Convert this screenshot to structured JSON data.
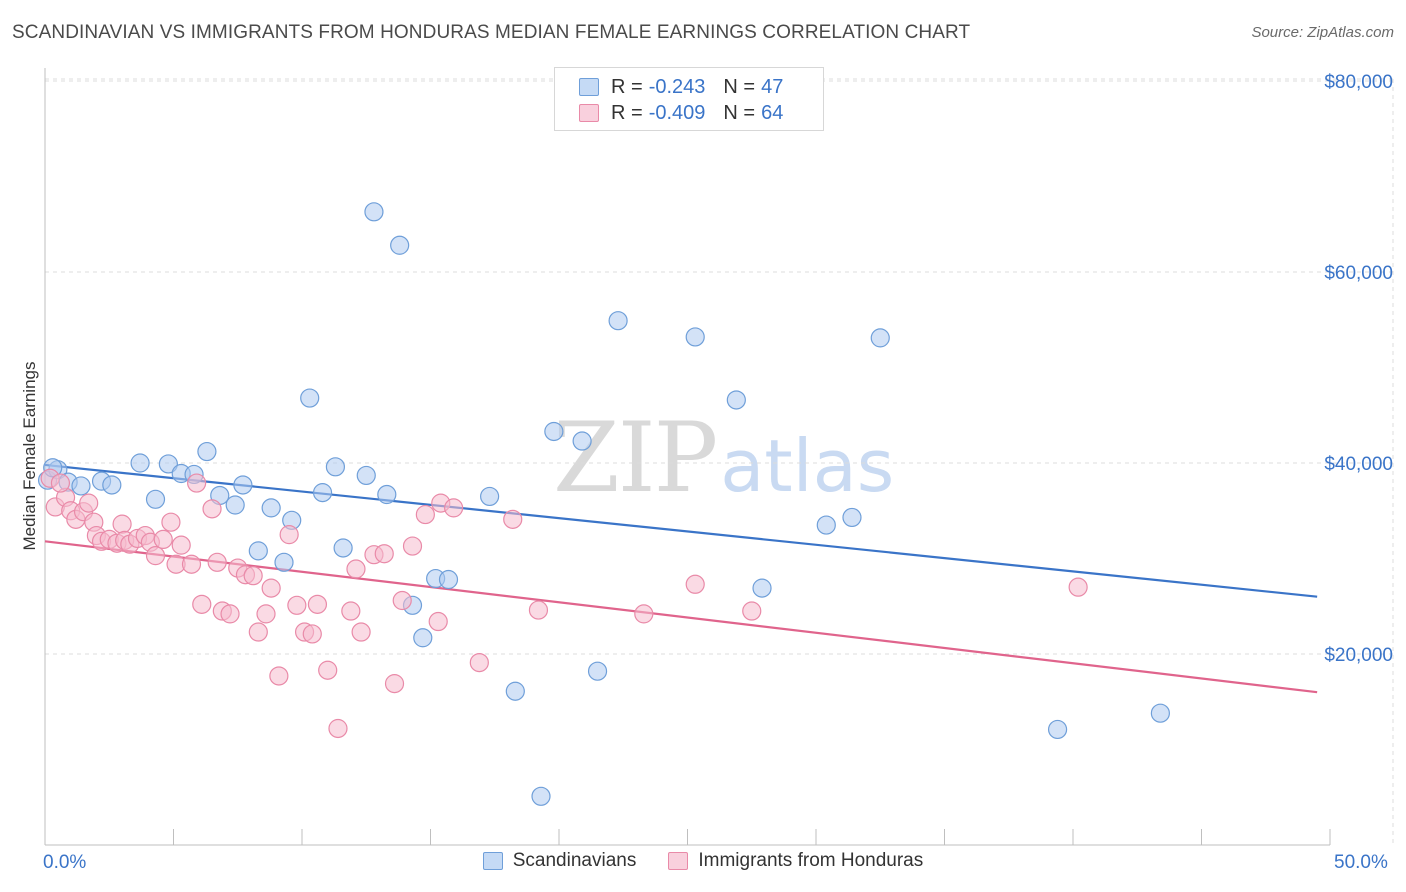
{
  "chart_data": {
    "type": "scatter",
    "title": "SCANDINAVIAN VS IMMIGRANTS FROM HONDURAS MEDIAN FEMALE EARNINGS CORRELATION CHART",
    "source": "Source: ZipAtlas.com",
    "xlabel": "",
    "ylabel": "Median Female Earnings",
    "xlim": [
      0,
      50
    ],
    "ylim": [
      0,
      82000
    ],
    "x_tick_labels": [
      "0.0%",
      "50.0%"
    ],
    "y_ticks": [
      20000,
      40000,
      60000,
      80000
    ],
    "y_tick_labels": [
      "$20,000",
      "$40,000",
      "$60,000",
      "$80,000"
    ],
    "grid": true,
    "colors": {
      "blue_fill": "#aecbf0",
      "blue_stroke": "#6f9fd9",
      "blue_line": "#3a74c8",
      "pink_fill": "#f5bccd",
      "pink_stroke": "#e98aa8",
      "pink_line": "#e0648c",
      "accent_text": "#3a74c8"
    },
    "series": [
      {
        "name": "Scandinavians",
        "r": "-0.243",
        "n": "47",
        "trend": [
          [
            0,
            39800
          ],
          [
            49.5,
            26000
          ]
        ],
        "points": [
          [
            0.1,
            38200
          ],
          [
            0.5,
            39300
          ],
          [
            0.9,
            38000
          ],
          [
            1.4,
            37600
          ],
          [
            2.2,
            38100
          ],
          [
            2.6,
            37700
          ],
          [
            3.7,
            40000
          ],
          [
            4.3,
            36200
          ],
          [
            4.8,
            39900
          ],
          [
            5.3,
            38900
          ],
          [
            5.8,
            38800
          ],
          [
            6.3,
            41200
          ],
          [
            6.8,
            36600
          ],
          [
            7.4,
            35600
          ],
          [
            7.7,
            37700
          ],
          [
            8.3,
            30800
          ],
          [
            8.8,
            35300
          ],
          [
            9.3,
            29600
          ],
          [
            9.6,
            34000
          ],
          [
            10.3,
            46800
          ],
          [
            10.8,
            36900
          ],
          [
            11.3,
            39600
          ],
          [
            11.6,
            31100
          ],
          [
            12.5,
            38700
          ],
          [
            12.8,
            66300
          ],
          [
            13.3,
            36700
          ],
          [
            13.8,
            62800
          ],
          [
            14.3,
            25100
          ],
          [
            14.7,
            21700
          ],
          [
            15.2,
            27900
          ],
          [
            15.7,
            27800
          ],
          [
            17.3,
            36500
          ],
          [
            18.3,
            16100
          ],
          [
            19.3,
            5100
          ],
          [
            19.8,
            43300
          ],
          [
            20.9,
            42300
          ],
          [
            21.5,
            18200
          ],
          [
            22.3,
            54900
          ],
          [
            25.3,
            53200
          ],
          [
            26.9,
            46600
          ],
          [
            27.9,
            26900
          ],
          [
            30.4,
            33500
          ],
          [
            31.4,
            34300
          ],
          [
            32.5,
            53100
          ],
          [
            39.4,
            12100
          ],
          [
            43.4,
            13800
          ],
          [
            0.3,
            39500
          ]
        ]
      },
      {
        "name": "Immigrants from Honduras",
        "r": "-0.409",
        "n": "64",
        "trend": [
          [
            0,
            31800
          ],
          [
            49.5,
            16000
          ]
        ],
        "points": [
          [
            0.2,
            38400
          ],
          [
            0.4,
            35400
          ],
          [
            0.8,
            36400
          ],
          [
            1.0,
            35000
          ],
          [
            1.2,
            34100
          ],
          [
            1.5,
            34900
          ],
          [
            1.7,
            35800
          ],
          [
            1.9,
            33800
          ],
          [
            2.0,
            32400
          ],
          [
            2.2,
            31800
          ],
          [
            2.5,
            32000
          ],
          [
            2.8,
            31600
          ],
          [
            3.0,
            33600
          ],
          [
            3.1,
            31900
          ],
          [
            3.3,
            31500
          ],
          [
            3.6,
            32100
          ],
          [
            3.9,
            32400
          ],
          [
            4.1,
            31700
          ],
          [
            4.3,
            30300
          ],
          [
            4.6,
            32000
          ],
          [
            4.9,
            33800
          ],
          [
            5.1,
            29400
          ],
          [
            5.3,
            31400
          ],
          [
            5.7,
            29400
          ],
          [
            5.9,
            37900
          ],
          [
            6.1,
            25200
          ],
          [
            6.5,
            35200
          ],
          [
            6.7,
            29600
          ],
          [
            6.9,
            24500
          ],
          [
            7.2,
            24200
          ],
          [
            7.5,
            29000
          ],
          [
            7.8,
            28300
          ],
          [
            8.1,
            28200
          ],
          [
            8.3,
            22300
          ],
          [
            8.6,
            24200
          ],
          [
            8.8,
            26900
          ],
          [
            9.1,
            17700
          ],
          [
            9.5,
            32500
          ],
          [
            9.8,
            25100
          ],
          [
            10.1,
            22300
          ],
          [
            10.4,
            22100
          ],
          [
            10.6,
            25200
          ],
          [
            11.0,
            18300
          ],
          [
            11.4,
            12200
          ],
          [
            11.9,
            24500
          ],
          [
            12.1,
            28900
          ],
          [
            12.3,
            22300
          ],
          [
            12.8,
            30400
          ],
          [
            13.2,
            30500
          ],
          [
            13.6,
            16900
          ],
          [
            13.9,
            25600
          ],
          [
            14.3,
            31300
          ],
          [
            14.8,
            34600
          ],
          [
            15.3,
            23400
          ],
          [
            15.4,
            35800
          ],
          [
            15.9,
            35300
          ],
          [
            16.9,
            19100
          ],
          [
            18.2,
            34100
          ],
          [
            19.2,
            24600
          ],
          [
            23.3,
            24200
          ],
          [
            25.3,
            27300
          ],
          [
            27.5,
            24500
          ],
          [
            40.2,
            27000
          ],
          [
            0.6,
            37900
          ]
        ]
      }
    ]
  },
  "legend": {
    "r_label": "R =",
    "n_label": "N =",
    "series": [
      {
        "name": "Scandinavians",
        "r": "-0.243",
        "n": "47"
      },
      {
        "name": "Immigrants from Honduras",
        "r": "-0.409",
        "n": "64"
      }
    ]
  },
  "watermark": {
    "zip": "ZIP",
    "atlas": "atlas"
  }
}
